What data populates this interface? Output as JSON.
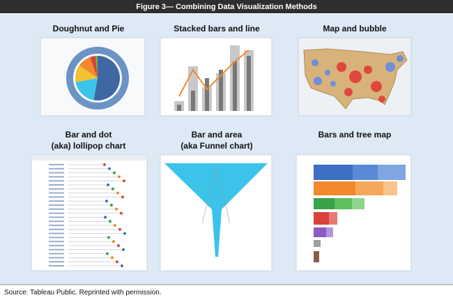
{
  "header": {
    "title": "Figure 3— Combining Data Visualization Methods"
  },
  "panels": [
    {
      "title": [
        "Doughnut and Pie"
      ]
    },
    {
      "title": [
        "Stacked bars and line"
      ]
    },
    {
      "title": [
        "Map and bubble"
      ]
    },
    {
      "title": [
        "Bar and dot",
        "(aka) lollipop chart"
      ]
    },
    {
      "title": [
        "Bar and area",
        "(aka Funnel chart)"
      ]
    },
    {
      "title": [
        "Bars and tree map"
      ]
    }
  ],
  "source": "Source:  Tableau Public. Reprinted with permission."
}
